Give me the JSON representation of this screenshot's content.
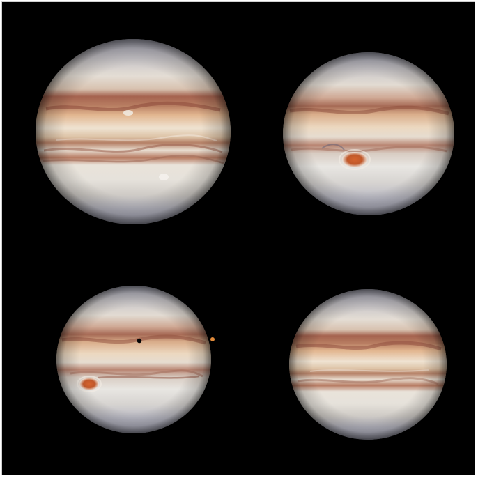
{
  "image": {
    "background_color": "#000000",
    "border_color": "#cfcfcf",
    "panels": [
      {
        "id": "top-left",
        "has_red_spot": false,
        "has_moon_shadow": false,
        "has_moon": false
      },
      {
        "id": "top-right",
        "has_red_spot": true,
        "has_moon_shadow": false,
        "has_moon": false
      },
      {
        "id": "bottom-left",
        "has_red_spot": true,
        "has_moon_shadow": true,
        "has_moon": true
      },
      {
        "id": "bottom-right",
        "has_red_spot": false,
        "has_moon_shadow": false,
        "has_moon": false
      }
    ],
    "colors": {
      "zone_light": "#e8e4dc",
      "belt_brown": "#a86a52",
      "belt_tan": "#d2a47c",
      "red_spot": "#c35a2a",
      "polar_blue": "#b9bccb",
      "moon_orange": "#e08a3a",
      "moon_shadow": "#050505"
    }
  }
}
